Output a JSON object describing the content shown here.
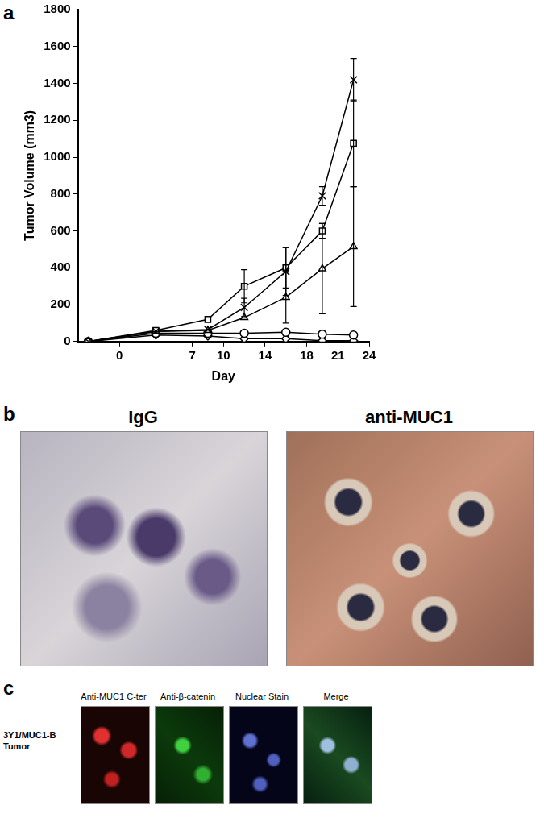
{
  "chart_data": {
    "type": "line",
    "x_label": "Day",
    "y_label": "Tumor Volume (mm3)",
    "x": [
      -3,
      3.5,
      8.5,
      12,
      16,
      19.5,
      22.5
    ],
    "series": [
      {
        "color": "#000000",
        "marker": "cross",
        "values": [
          0,
          55,
          65,
          185,
          380,
          790,
          1420
        ],
        "errors": [
          null,
          null,
          null,
          50,
          130,
          50,
          115
        ]
      },
      {
        "color": "#000000",
        "marker": "square",
        "values": [
          0,
          60,
          120,
          300,
          400,
          600,
          1075
        ],
        "errors": [
          null,
          null,
          null,
          90,
          110,
          40,
          235
        ]
      },
      {
        "color": "#000000",
        "marker": "triangle",
        "values": [
          0,
          55,
          60,
          130,
          240,
          395,
          515
        ],
        "errors": [
          null,
          null,
          null,
          null,
          140,
          245,
          325
        ]
      },
      {
        "color": "#000000",
        "marker": "circle",
        "values": [
          0,
          45,
          45,
          45,
          50,
          40,
          35
        ],
        "errors": [
          null,
          null,
          null,
          null,
          null,
          null,
          null
        ]
      },
      {
        "color": "#000000",
        "marker": "diamond",
        "values": [
          0,
          35,
          30,
          15,
          15,
          5,
          5
        ],
        "errors": [
          null,
          null,
          null,
          null,
          null,
          null,
          null
        ]
      }
    ],
    "xlim": [
      -4,
      24
    ],
    "xticks": [
      0,
      7,
      10,
      14,
      18,
      21,
      24
    ],
    "ylim": [
      0,
      1800
    ],
    "yticks": [
      0,
      200,
      400,
      600,
      800,
      1000,
      1200,
      1400,
      1600,
      1800
    ],
    "grid": false
  },
  "panels": {
    "a": "a",
    "b": {
      "label": "b",
      "images": [
        "IgG",
        "anti-MUC1"
      ]
    },
    "c": {
      "label": "c",
      "row_label": "3Y1/MUC1-B Tumor",
      "images": [
        "Anti-MUC1 C-ter",
        "Anti-β-catenin",
        "Nuclear Stain",
        "Merge"
      ]
    }
  }
}
